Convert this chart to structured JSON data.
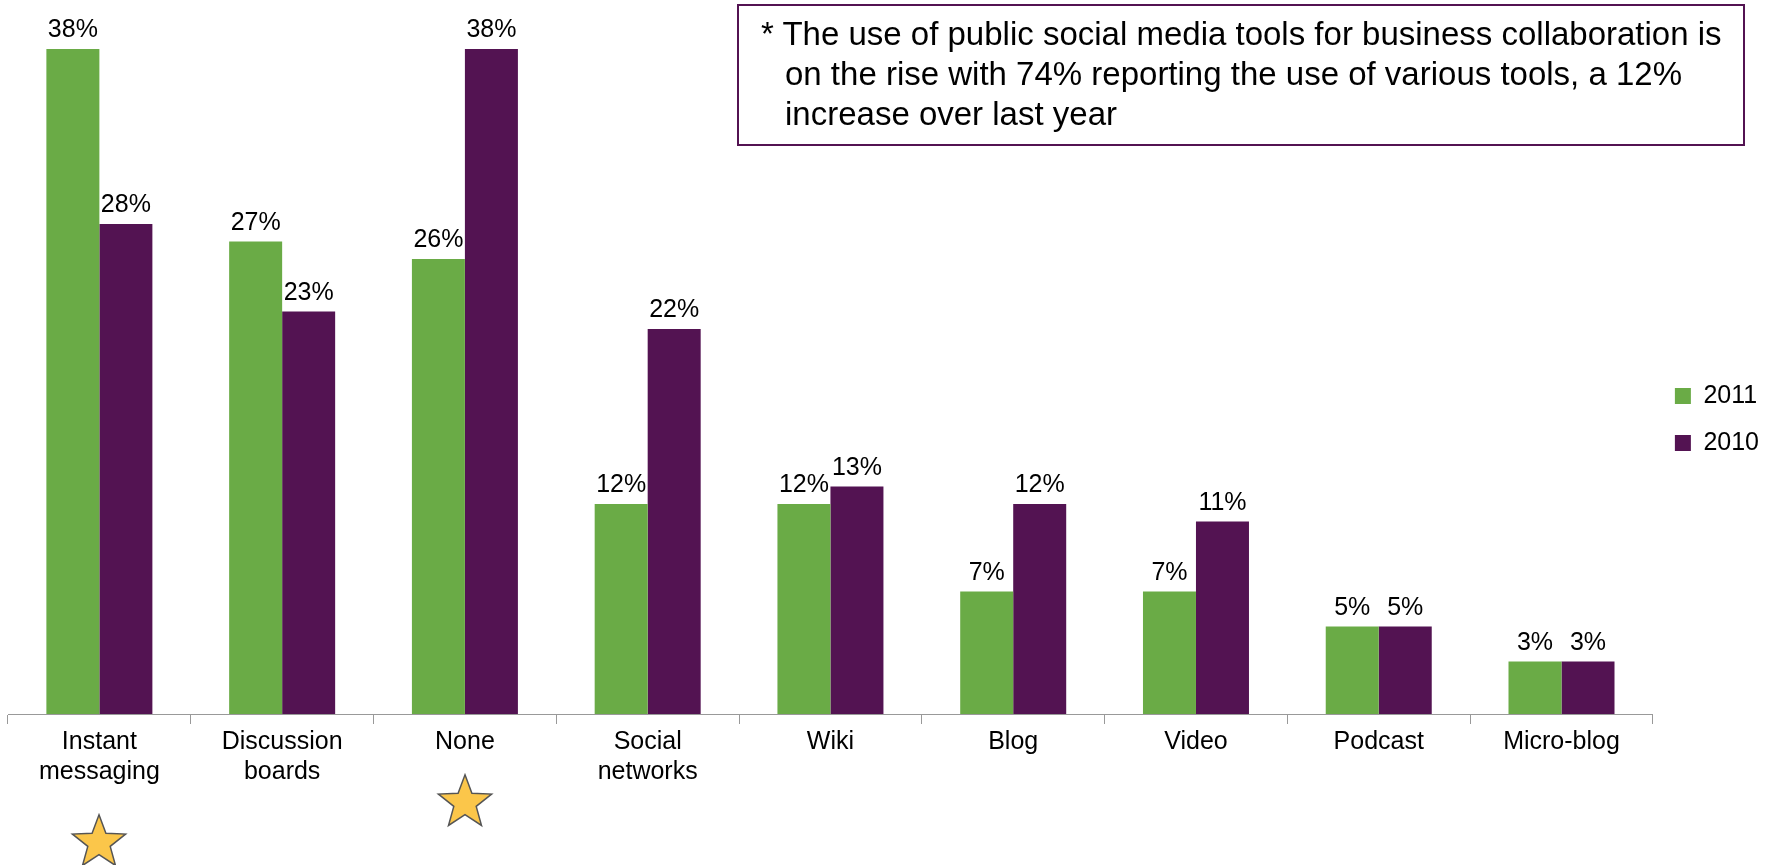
{
  "chart_data": {
    "type": "bar",
    "categories": [
      "Instant messaging",
      "Discussion boards",
      "None",
      "Social networks",
      "Wiki",
      "Blog",
      "Video",
      "Podcast",
      "Micro-blog"
    ],
    "series": [
      {
        "name": "2011",
        "color": "#6aab46",
        "values": [
          38,
          27,
          26,
          12,
          12,
          7,
          7,
          5,
          3
        ],
        "value_labels": [
          "38%",
          "27%",
          "26%",
          "12%",
          "12%",
          "7%",
          "7%",
          "5%",
          "3%"
        ]
      },
      {
        "name": "2010",
        "color": "#531352",
        "values": [
          28,
          23,
          38,
          22,
          13,
          12,
          11,
          5,
          3
        ],
        "value_labels": [
          "28%",
          "23%",
          "38%",
          "22%",
          "13%",
          "12%",
          "11%",
          "5%",
          "3%"
        ]
      }
    ],
    "legend": "right",
    "grid": false,
    "annotations": [
      "* The use of public social media tools for business collaboration is on the rise with 74% reporting the use of various tools, a 12% increase over last year"
    ]
  }
}
